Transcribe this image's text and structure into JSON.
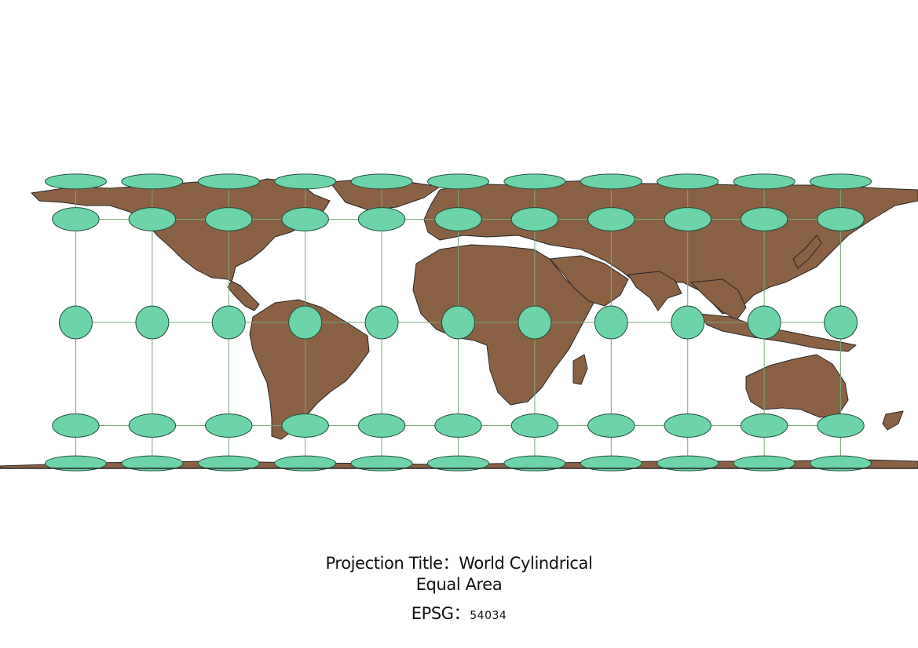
{
  "map": {
    "projection_title_label": "Projection Title：",
    "projection_name_part1": "World Cylindrical",
    "projection_name_part2": "Equal Area",
    "epsg_label": "EPSG：",
    "epsg_code": "54034",
    "colors": {
      "land": "#8b6143",
      "coastline": "#262626",
      "ellipse_fill": "#6dd3a8",
      "ellipse_stroke": "#1e4d3a",
      "graticule": "#7aa87a",
      "background": "#ffffff"
    },
    "graticule": {
      "longitudes_deg": [
        -150,
        -120,
        -90,
        -60,
        -30,
        0,
        30,
        60,
        90,
        120,
        150
      ],
      "latitudes_deg": [
        -75,
        -45,
        0,
        45,
        75
      ]
    },
    "indicatrix_style": "Tissot indicatrix circles"
  }
}
